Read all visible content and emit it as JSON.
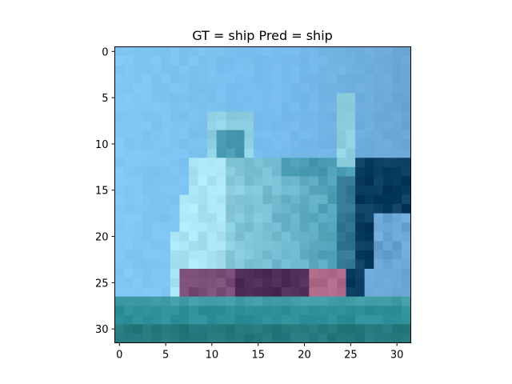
{
  "figure": {
    "title": "GT = ship Pred = ship"
  },
  "image": {
    "subject": "ship",
    "grid_size": 32,
    "palette": {
      "sky_light": "#80c8f5",
      "sky_mid": "#74b9ea",
      "sky_right": "#6aa6d4",
      "ship_cabin": "#8fd0e2",
      "ship_cabin_light": "#a8e4f4",
      "ship_teal": "#4a9cb4",
      "ship_dark": "#083a60",
      "hull_purple": "#7a4c78",
      "hull_dark": "#4e2e58",
      "hull_pink": "#b06a8a",
      "water": "#2f8f98",
      "water_dark": "#24787e",
      "water_light": "#4ea6b0"
    }
  },
  "axes": {
    "x_ticks": [
      "0",
      "5",
      "10",
      "15",
      "20",
      "25",
      "30"
    ],
    "y_ticks": [
      "0",
      "5",
      "10",
      "15",
      "20",
      "25",
      "30"
    ]
  }
}
